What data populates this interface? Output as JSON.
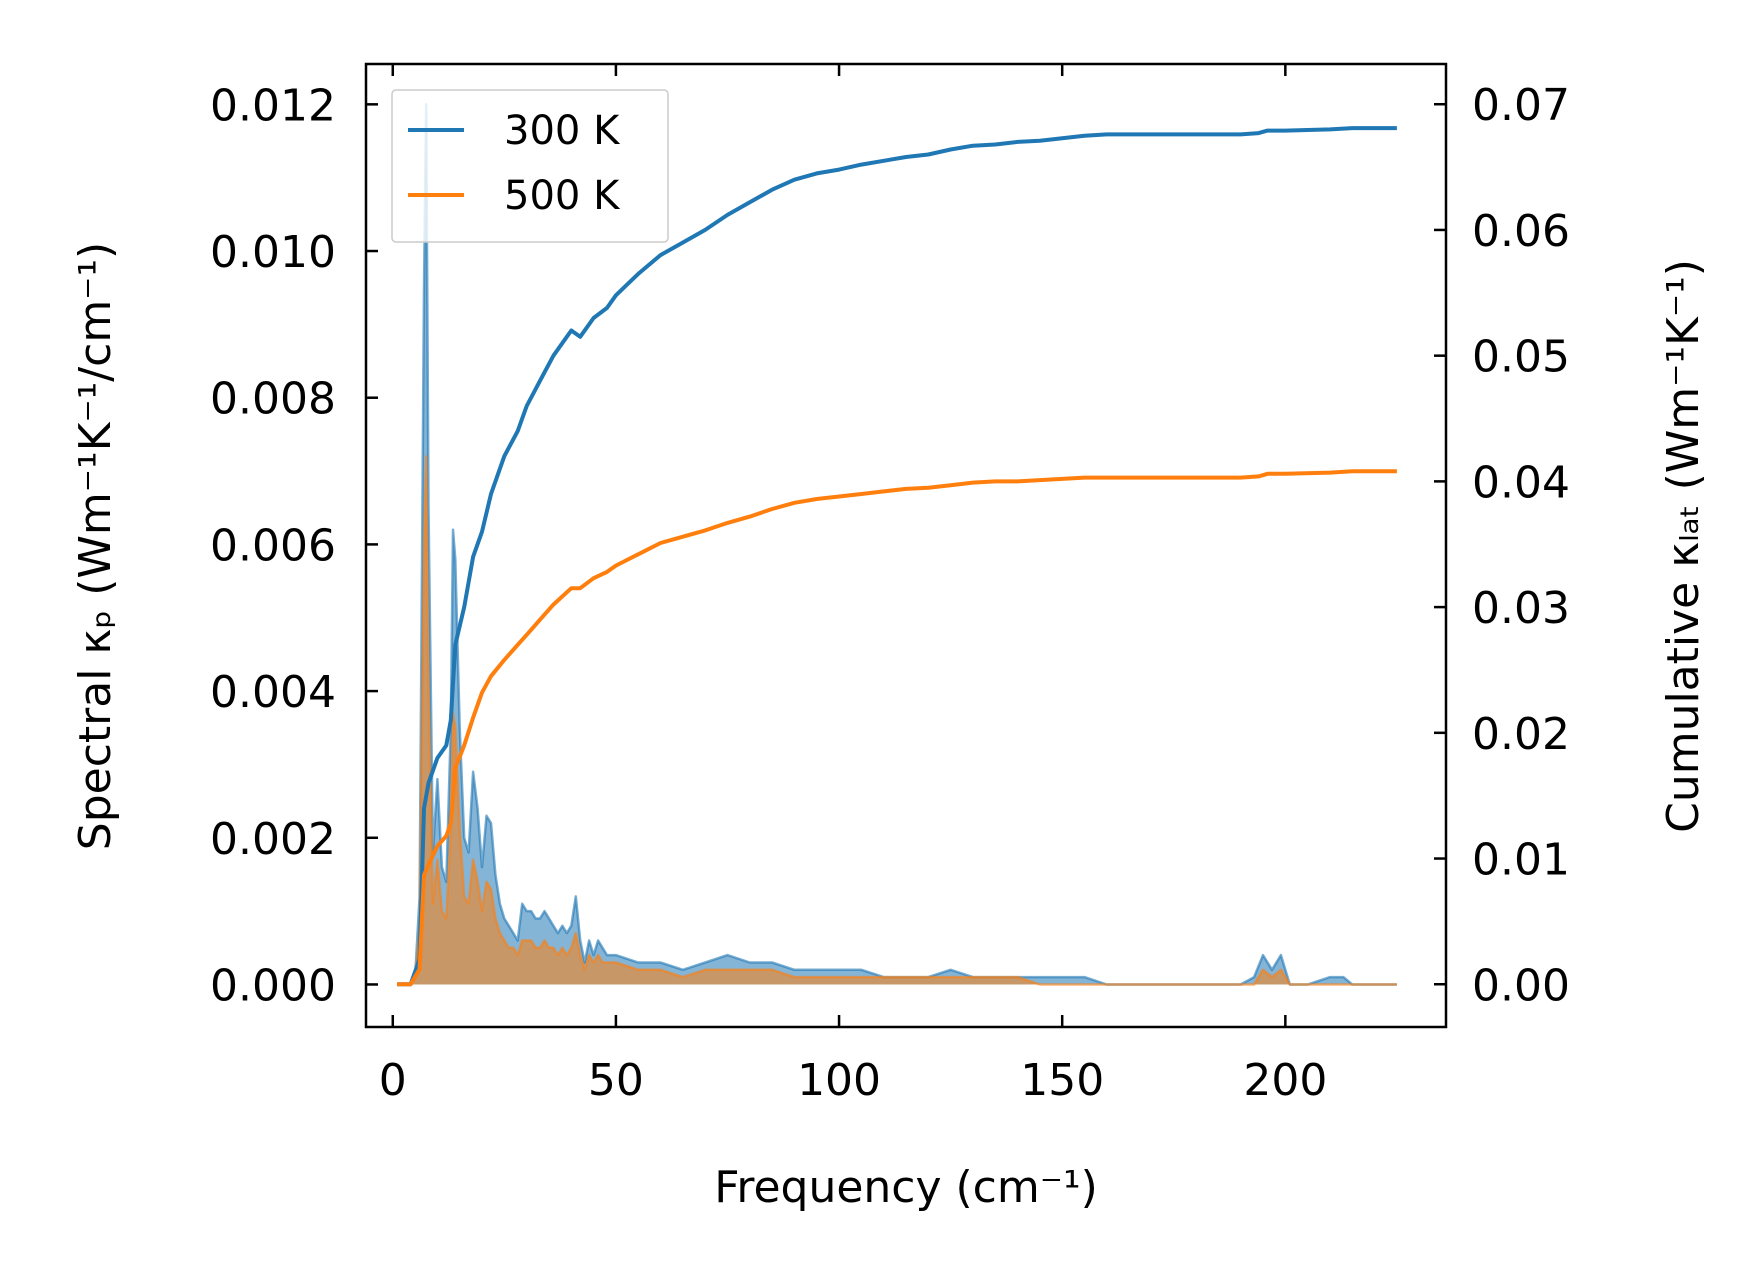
{
  "chart_data": {
    "type": "line",
    "xlabel": "Frequency (cm⁻¹)",
    "ylabel_left": "Spectral κₚ (Wm⁻¹K⁻¹/cm⁻¹)",
    "ylabel_right": "Cumulative κₗₐₜ (Wm⁻¹K⁻¹)",
    "xlim": [
      -6,
      236
    ],
    "ylim_left": [
      -0.00058,
      0.01255
    ],
    "ylim_right": [
      -0.0034,
      0.0732
    ],
    "x_ticks": [
      0,
      50,
      100,
      150,
      200
    ],
    "x_tick_labels": [
      "0",
      "50",
      "100",
      "150",
      "200"
    ],
    "y_left_ticks": [
      0,
      0.002,
      0.004,
      0.006,
      0.008,
      0.01,
      0.012
    ],
    "y_left_tick_labels": [
      "0.000",
      "0.002",
      "0.004",
      "0.006",
      "0.008",
      "0.010",
      "0.012"
    ],
    "y_right_ticks": [
      0,
      0.01,
      0.02,
      0.03,
      0.04,
      0.05,
      0.06,
      0.07
    ],
    "y_right_tick_labels": [
      "0.00",
      "0.01",
      "0.02",
      "0.03",
      "0.04",
      "0.05",
      "0.06",
      "0.07"
    ],
    "grid": false,
    "legend_position": "top-left",
    "colors": {
      "300 K": "#1f77b4",
      "500 K": "#ff7f0e"
    },
    "series": [
      {
        "name": "300 K",
        "axis": "right",
        "kind": "cumulative",
        "x": [
          1,
          4,
          6,
          7,
          8,
          10,
          12,
          13,
          14,
          16,
          18,
          20,
          22,
          25,
          28,
          30,
          33,
          36,
          40,
          42,
          45,
          48,
          50,
          55,
          60,
          65,
          70,
          75,
          80,
          85,
          90,
          95,
          100,
          105,
          110,
          115,
          120,
          125,
          130,
          135,
          140,
          145,
          150,
          155,
          160,
          170,
          180,
          190,
          194,
          196,
          200,
          210,
          215,
          225
        ],
        "y": [
          0,
          0,
          0.002,
          0.014,
          0.016,
          0.018,
          0.019,
          0.021,
          0.027,
          0.03,
          0.034,
          0.036,
          0.039,
          0.042,
          0.044,
          0.046,
          0.048,
          0.05,
          0.052,
          0.0515,
          0.053,
          0.0538,
          0.0548,
          0.0565,
          0.058,
          0.059,
          0.06,
          0.0612,
          0.0622,
          0.0632,
          0.064,
          0.0645,
          0.0648,
          0.0652,
          0.0655,
          0.0658,
          0.066,
          0.0664,
          0.0667,
          0.0668,
          0.067,
          0.0671,
          0.0673,
          0.0675,
          0.0676,
          0.0676,
          0.0676,
          0.0676,
          0.0677,
          0.0679,
          0.0679,
          0.068,
          0.0681,
          0.0681
        ]
      },
      {
        "name": "500 K",
        "axis": "right",
        "kind": "cumulative",
        "x": [
          1,
          4,
          6,
          7,
          8,
          10,
          12,
          13,
          14,
          16,
          18,
          20,
          22,
          25,
          28,
          30,
          33,
          36,
          40,
          42,
          45,
          48,
          50,
          55,
          60,
          65,
          70,
          75,
          80,
          85,
          90,
          95,
          100,
          105,
          110,
          115,
          120,
          125,
          130,
          135,
          140,
          145,
          150,
          155,
          160,
          170,
          180,
          190,
          194,
          196,
          200,
          210,
          215,
          225
        ],
        "y": [
          0,
          0,
          0.0012,
          0.0087,
          0.0095,
          0.011,
          0.0118,
          0.0128,
          0.0172,
          0.019,
          0.0212,
          0.0232,
          0.0245,
          0.0258,
          0.027,
          0.0278,
          0.029,
          0.0302,
          0.0315,
          0.0315,
          0.0323,
          0.0328,
          0.0333,
          0.0342,
          0.0351,
          0.0356,
          0.0361,
          0.0367,
          0.0372,
          0.0378,
          0.0383,
          0.0386,
          0.0388,
          0.039,
          0.0392,
          0.0394,
          0.0395,
          0.0397,
          0.0399,
          0.04,
          0.04,
          0.0401,
          0.0402,
          0.0403,
          0.0403,
          0.0403,
          0.0403,
          0.0403,
          0.0404,
          0.0406,
          0.0406,
          0.0407,
          0.0408,
          0.0408
        ]
      },
      {
        "name": "300 K",
        "axis": "left",
        "kind": "spectral",
        "x": [
          1,
          4,
          5,
          6,
          7,
          7.5,
          8,
          9,
          10,
          11,
          12,
          13,
          13.5,
          14,
          15,
          16,
          17,
          18,
          19,
          20,
          21,
          22,
          23,
          24,
          25,
          26,
          27,
          28,
          29,
          30,
          31,
          32,
          33,
          34,
          35,
          36,
          37,
          38,
          39,
          40,
          41,
          42,
          43,
          44,
          45,
          46,
          47,
          48,
          50,
          55,
          60,
          65,
          70,
          75,
          80,
          85,
          90,
          95,
          100,
          105,
          110,
          115,
          120,
          125,
          130,
          135,
          140,
          145,
          150,
          155,
          160,
          170,
          180,
          190,
          193,
          195,
          197,
          199,
          201,
          205,
          210,
          213,
          215,
          220,
          225
        ],
        "y": [
          0,
          0,
          0.0001,
          0.0012,
          0.0095,
          0.012,
          0.0065,
          0.0018,
          0.0028,
          0.0016,
          0.0014,
          0.0035,
          0.0062,
          0.0058,
          0.0035,
          0.002,
          0.0018,
          0.0029,
          0.0024,
          0.0016,
          0.0023,
          0.0022,
          0.0015,
          0.0011,
          0.0009,
          0.0008,
          0.0007,
          0.0006,
          0.0011,
          0.001,
          0.001,
          0.0009,
          0.0009,
          0.001,
          0.0009,
          0.0008,
          0.0007,
          0.0008,
          0.0007,
          0.0008,
          0.0012,
          0.0006,
          0.0003,
          0.0006,
          0.0004,
          0.0006,
          0.0005,
          0.0004,
          0.0004,
          0.0003,
          0.0003,
          0.0002,
          0.0003,
          0.0004,
          0.0003,
          0.0003,
          0.0002,
          0.0002,
          0.0002,
          0.0002,
          0.0001,
          0.0001,
          0.0001,
          0.0002,
          0.0001,
          0.0001,
          0.0001,
          0.0001,
          0.0001,
          0.0001,
          0,
          0,
          0,
          0,
          0.0001,
          0.0004,
          0.0002,
          0.0004,
          0,
          0,
          0.0001,
          0.0001,
          0,
          0,
          0
        ]
      },
      {
        "name": "500 K",
        "axis": "left",
        "kind": "spectral",
        "x": [
          1,
          4,
          5,
          6,
          7,
          7.5,
          8,
          9,
          10,
          11,
          12,
          13,
          13.5,
          14,
          15,
          16,
          17,
          18,
          19,
          20,
          21,
          22,
          23,
          24,
          25,
          26,
          27,
          28,
          29,
          30,
          31,
          32,
          33,
          34,
          35,
          36,
          37,
          38,
          39,
          40,
          41,
          42,
          43,
          44,
          45,
          46,
          47,
          48,
          50,
          55,
          60,
          65,
          70,
          75,
          80,
          85,
          90,
          95,
          100,
          105,
          110,
          115,
          120,
          125,
          130,
          135,
          140,
          145,
          150,
          155,
          160,
          170,
          180,
          190,
          193,
          195,
          197,
          199,
          201,
          205,
          210,
          213,
          215,
          220,
          225
        ],
        "y": [
          0,
          0,
          0.0001,
          0.0007,
          0.006,
          0.0072,
          0.004,
          0.0011,
          0.0017,
          0.001,
          0.0009,
          0.0021,
          0.0037,
          0.0035,
          0.0021,
          0.0012,
          0.0011,
          0.0017,
          0.0014,
          0.001,
          0.0014,
          0.0013,
          0.0009,
          0.0007,
          0.0006,
          0.0005,
          0.0005,
          0.0004,
          0.0006,
          0.0006,
          0.0006,
          0.0005,
          0.0005,
          0.0006,
          0.0005,
          0.0005,
          0.0004,
          0.0005,
          0.0004,
          0.0005,
          0.0007,
          0.0004,
          0.0002,
          0.0004,
          0.0003,
          0.0004,
          0.0003,
          0.0003,
          0.0003,
          0.0002,
          0.0002,
          0.0001,
          0.0002,
          0.0002,
          0.0002,
          0.0002,
          0.0001,
          0.0001,
          0.0001,
          0.0001,
          0.0001,
          0.0001,
          0.0001,
          0.0001,
          0.0001,
          0.0001,
          0.0001,
          0,
          0,
          0,
          0,
          0,
          0,
          0,
          0,
          0.0002,
          0.0001,
          0.0002,
          0,
          0,
          0,
          0,
          0,
          0,
          0
        ]
      }
    ]
  }
}
